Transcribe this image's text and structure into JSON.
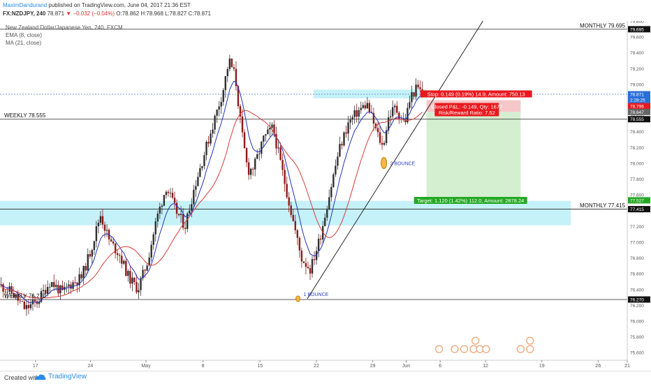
{
  "header": {
    "author": "MaximDandurand",
    "published": "published on TradingView.com, June 04, 2017 21:36 EST",
    "symbol": "FX:NZDJPY, 240",
    "last": "78.871",
    "change": "▼ −0.032 (−0.04%)",
    "ohlc": "O:78.862 H:78.968 L:78.827 C:78.871"
  },
  "legend": {
    "title": "New Zealand Dollar/Japanese Yen, 240, FXCM",
    "ema": "EMA (8, close)",
    "ma": "MA (21, close)"
  },
  "footer": {
    "created_with": "Created with",
    "brand": "TradingView"
  },
  "colors": {
    "up": "#2f2f2f",
    "down": "#8b1a1a",
    "ema": "#2233bb",
    "ma": "#d83a3a",
    "zone": "#bff0f7",
    "stop": "#e8191e",
    "target": "#24a824",
    "accent": "#2a8be8"
  },
  "chart_data": {
    "type": "candlestick",
    "symbol": "FX:NZDJPY",
    "timeframe": "240",
    "y_axis": {
      "range": [
        75.5,
        79.8
      ],
      "ticks": [
        "79.800",
        "79.600",
        "79.400",
        "79.200",
        "79.000",
        "78.800",
        "78.600",
        "78.400",
        "78.200",
        "78.000",
        "77.800",
        "77.600",
        "77.400",
        "77.200",
        "77.000",
        "76.800",
        "76.600",
        "76.400",
        "76.200",
        "76.000",
        "75.800",
        "75.600"
      ]
    },
    "x_axis": {
      "ticks": [
        {
          "label": "17",
          "pos": 0.0565
        },
        {
          "label": "24",
          "pos": 0.1441
        },
        {
          "label": "May",
          "pos": 0.2327
        },
        {
          "label": "8",
          "pos": 0.3237
        },
        {
          "label": "15",
          "pos": 0.4146
        },
        {
          "label": "22",
          "pos": 0.5044
        },
        {
          "label": "29",
          "pos": 0.5942
        },
        {
          "label": "Jun",
          "pos": 0.6475
        },
        {
          "label": "6",
          "pos": 0.7017
        },
        {
          "label": "12",
          "pos": 0.7741
        },
        {
          "label": "19",
          "pos": 0.8639
        },
        {
          "label": "26",
          "pos": 0.9536
        },
        {
          "label": "21",
          "pos": 1.0
        }
      ]
    },
    "path": [
      [
        0.0,
        76.45
      ],
      [
        0.02,
        76.35
      ],
      [
        0.04,
        76.15
      ],
      [
        0.06,
        76.25
      ],
      [
        0.08,
        76.5
      ],
      [
        0.1,
        76.35
      ],
      [
        0.11,
        76.45
      ],
      [
        0.13,
        76.55
      ],
      [
        0.145,
        76.9
      ],
      [
        0.16,
        77.35
      ],
      [
        0.175,
        77.0
      ],
      [
        0.19,
        76.85
      ],
      [
        0.205,
        76.55
      ],
      [
        0.22,
        76.4
      ],
      [
        0.235,
        76.75
      ],
      [
        0.25,
        77.3
      ],
      [
        0.265,
        77.7
      ],
      [
        0.28,
        77.4
      ],
      [
        0.295,
        77.2
      ],
      [
        0.31,
        77.7
      ],
      [
        0.325,
        78.1
      ],
      [
        0.34,
        78.5
      ],
      [
        0.355,
        78.9
      ],
      [
        0.365,
        79.3
      ],
      [
        0.375,
        79.1
      ],
      [
        0.385,
        78.4
      ],
      [
        0.395,
        77.9
      ],
      [
        0.405,
        77.95
      ],
      [
        0.42,
        78.3
      ],
      [
        0.435,
        78.45
      ],
      [
        0.45,
        77.9
      ],
      [
        0.465,
        77.35
      ],
      [
        0.48,
        76.8
      ],
      [
        0.495,
        76.65
      ],
      [
        0.51,
        77.05
      ],
      [
        0.525,
        77.6
      ],
      [
        0.54,
        78.15
      ],
      [
        0.555,
        78.5
      ],
      [
        0.57,
        78.65
      ],
      [
        0.585,
        78.75
      ],
      [
        0.6,
        78.4
      ],
      [
        0.61,
        78.2
      ],
      [
        0.62,
        78.6
      ],
      [
        0.63,
        78.7
      ],
      [
        0.645,
        78.5
      ],
      [
        0.655,
        78.85
      ],
      [
        0.665,
        78.95
      ],
      [
        0.675,
        78.87
      ]
    ],
    "series": [
      {
        "name": "EMA (8, close)",
        "kind": "line"
      },
      {
        "name": "MA (21, close)",
        "kind": "line"
      }
    ],
    "levels": [
      {
        "label": "MONTHLY 79.695",
        "value": 79.695
      },
      {
        "label": "WEEKLY 78.555",
        "value": 78.555
      },
      {
        "label": "MONTHLY 77.415",
        "value": 77.415
      },
      {
        "label": "WEEKLY 76.270",
        "value": 76.27
      }
    ],
    "price_labels": [
      "79.695",
      "78.871",
      "2:28:25",
      "78.796",
      "78.647",
      "78.555",
      "77.527",
      "77.415",
      "76.270"
    ],
    "zones": [
      {
        "name": "supply-zone",
        "from": 78.82,
        "to": 78.93
      },
      {
        "name": "demand-zone",
        "from": 77.21,
        "to": 77.52
      }
    ],
    "position": {
      "stop_text": "Stop: 0.149 (0.19%) 14.9, Amount: 750.13",
      "closed_text": "Closed P&L: -0.149, Qty: 1677",
      "rr_text": "Risk/Reward Ratio: 7.52",
      "target_text": "Target: 1.120 (1.42%) 112.0, Amount: 2878.24",
      "entry": 78.647,
      "stop": 78.796,
      "target": 77.527
    },
    "annotations": [
      "1 BOUNCE",
      "2 BOUNCE"
    ],
    "trendline": {
      "from": [
        0.49,
        76.28
      ],
      "to": [
        0.77,
        79.8
      ]
    },
    "events": 10
  }
}
